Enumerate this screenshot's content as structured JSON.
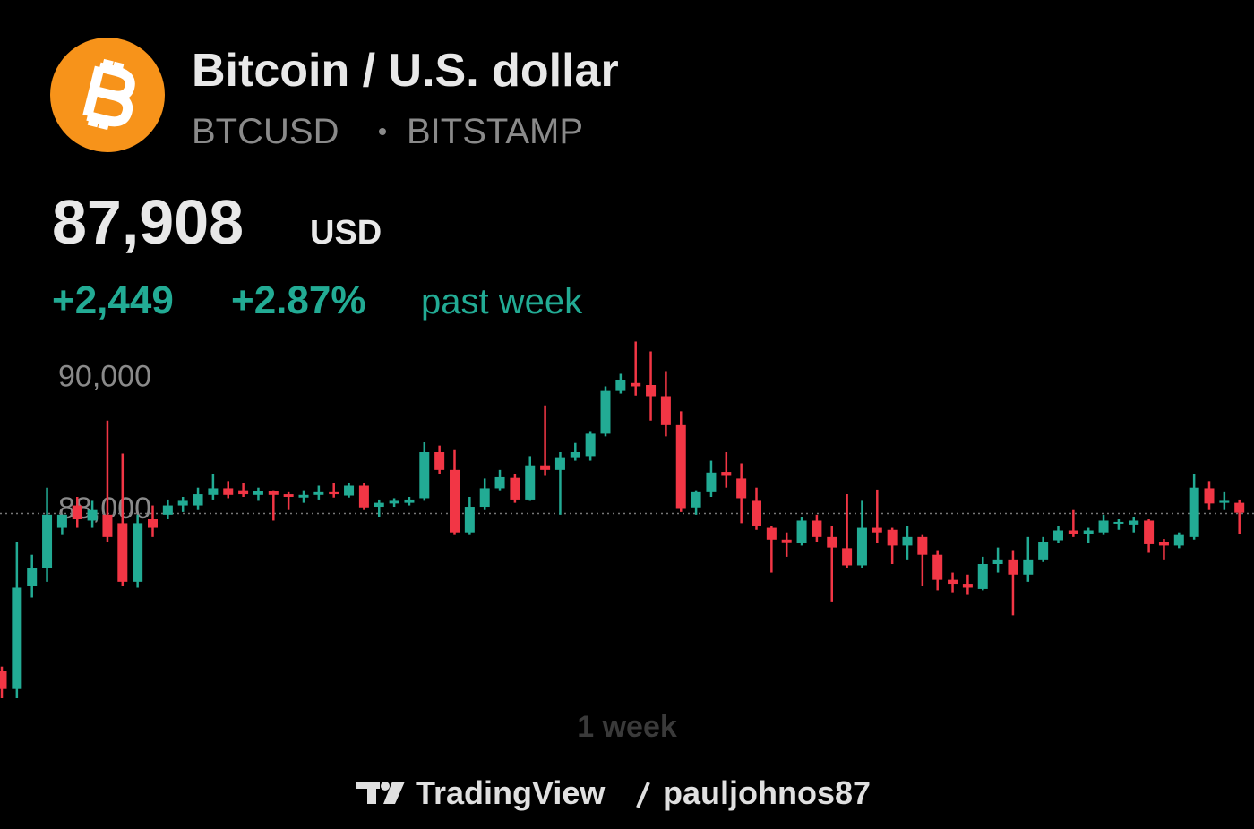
{
  "header": {
    "title": "Bitcoin / U.S. dollar",
    "symbol": "BTCUSD",
    "exchange": "BITSTAMP",
    "price": "87,908",
    "currency": "USD",
    "change": "+2,449",
    "change_percent": "+2.87%",
    "period": "past week"
  },
  "chart_data": {
    "type": "candlestick",
    "up_color": "#22ab94",
    "down_color": "#f23645",
    "ylim": [
      85100,
      90540
    ],
    "yticks": [
      {
        "value": 90000,
        "label": "90,000"
      },
      {
        "value": 88000,
        "label": "88,000"
      }
    ],
    "price_line": 87908,
    "open": [
      85510,
      85240,
      86800,
      87080,
      87690,
      88030,
      87800,
      87890,
      87760,
      86870,
      87820,
      87890,
      88030,
      88030,
      88190,
      88290,
      88260,
      88190,
      88250,
      88200,
      88150,
      88190,
      88230,
      88180,
      88330,
      88010,
      88060,
      88070,
      88140,
      88840,
      88570,
      87620,
      88010,
      88290,
      88450,
      88120,
      88640,
      88570,
      88750,
      88780,
      89120,
      89770,
      89890,
      89860,
      89690,
      89250,
      88000,
      88230,
      88540,
      88440,
      88100,
      87690,
      87510,
      87460,
      87800,
      87550,
      87380,
      87120,
      87690,
      87660,
      87420,
      87550,
      87280,
      86900,
      86840,
      86760,
      87140,
      87210,
      86980,
      87210,
      87500,
      87650,
      87590,
      87620,
      87760,
      87740,
      87800,
      87480,
      87420,
      87550,
      88290,
      88070,
      88070
    ],
    "high": [
      85580,
      87480,
      87280,
      88300,
      87890,
      88160,
      88100,
      89320,
      88820,
      87890,
      88030,
      88120,
      88160,
      88300,
      88500,
      88400,
      88370,
      88300,
      88260,
      88230,
      88260,
      88330,
      88370,
      88370,
      88370,
      88120,
      88140,
      88160,
      88990,
      88940,
      88870,
      88160,
      88440,
      88570,
      88500,
      88780,
      89550,
      88840,
      88980,
      89160,
      89840,
      90030,
      90520,
      90370,
      90070,
      89460,
      88260,
      88710,
      88840,
      88670,
      88300,
      87720,
      87620,
      87850,
      87890,
      87720,
      88200,
      88100,
      88270,
      87690,
      87720,
      87580,
      87350,
      87010,
      86980,
      87250,
      87390,
      87350,
      87550,
      87550,
      87720,
      87960,
      87690,
      87890,
      87820,
      87850,
      87820,
      87520,
      87620,
      88500,
      88400,
      88230,
      88120
    ],
    "low": [
      85100,
      85100,
      86630,
      86870,
      87580,
      87690,
      87690,
      87480,
      86800,
      86780,
      87550,
      87820,
      87930,
      87960,
      88120,
      88140,
      88160,
      88100,
      87800,
      87960,
      88070,
      88120,
      88150,
      88150,
      87960,
      87850,
      88010,
      88030,
      88100,
      88500,
      87580,
      87580,
      87960,
      88260,
      88070,
      88100,
      88480,
      87890,
      88710,
      88710,
      89080,
      89730,
      89700,
      89320,
      89080,
      87930,
      87890,
      88160,
      88300,
      87760,
      87660,
      87010,
      87250,
      87420,
      87480,
      86570,
      87080,
      87080,
      87460,
      87140,
      87210,
      86800,
      86740,
      86710,
      86670,
      86740,
      87010,
      86360,
      86870,
      87170,
      87460,
      87550,
      87460,
      87580,
      87660,
      87620,
      87310,
      87210,
      87380,
      87510,
      87960,
      87960,
      87590
    ],
    "close": [
      85240,
      86780,
      87080,
      87890,
      87890,
      87820,
      87960,
      87550,
      86870,
      87760,
      87690,
      88030,
      88100,
      88200,
      88290,
      88190,
      88200,
      88250,
      88190,
      88160,
      88190,
      88230,
      88200,
      88330,
      88000,
      88070,
      88100,
      88120,
      88840,
      88570,
      87620,
      88010,
      88290,
      88460,
      88120,
      88640,
      88570,
      88750,
      88840,
      89120,
      89770,
      89930,
      89840,
      89690,
      89250,
      87990,
      88230,
      88530,
      88480,
      88140,
      87720,
      87510,
      87470,
      87800,
      87550,
      87390,
      87120,
      87690,
      87620,
      87420,
      87550,
      87280,
      86900,
      86840,
      86780,
      87140,
      87210,
      86980,
      87210,
      87480,
      87650,
      87590,
      87650,
      87800,
      87780,
      87800,
      87440,
      87420,
      87580,
      88300,
      88060,
      88100,
      87920
    ],
    "range_label": "1 week"
  },
  "footer": {
    "brand": "TradingView",
    "user": "pauljohnos87"
  }
}
